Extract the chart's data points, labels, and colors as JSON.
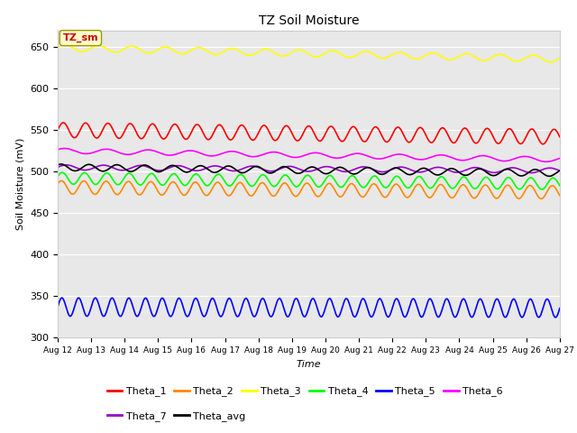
{
  "title": "TZ Soil Moisture",
  "xlabel": "Time",
  "ylabel": "Soil Moisture (mV)",
  "ylim": [
    300,
    670
  ],
  "yticks": [
    300,
    350,
    400,
    450,
    500,
    550,
    600,
    650
  ],
  "num_points": 1500,
  "background_color": "#e8e8e8",
  "fig_background": "#ffffff",
  "label_box_text": "TZ_sm",
  "label_box_bg": "#ffffcc",
  "label_box_fg": "#cc0000",
  "series": [
    {
      "name": "Theta_1",
      "color": "#ff0000",
      "base": 550,
      "trend": -0.55,
      "amplitude": 9,
      "frequency": 1.5,
      "phase": 0.0
    },
    {
      "name": "Theta_2",
      "color": "#ff8800",
      "base": 481,
      "trend": -0.4,
      "amplitude": 8,
      "frequency": 1.5,
      "phase": 0.5
    },
    {
      "name": "Theta_3",
      "color": "#ffff00",
      "base": 649,
      "trend": -0.9,
      "amplitude": 4,
      "frequency": 1.0,
      "phase": 0.2
    },
    {
      "name": "Theta_4",
      "color": "#00ff00",
      "base": 492,
      "trend": -0.45,
      "amplitude": 7,
      "frequency": 1.5,
      "phase": 0.3
    },
    {
      "name": "Theta_5",
      "color": "#0000ff",
      "base": 337,
      "trend": -0.1,
      "amplitude": 11,
      "frequency": 2.0,
      "phase": 0.0
    },
    {
      "name": "Theta_6",
      "color": "#ff00ff",
      "base": 525,
      "trend": -0.7,
      "amplitude": 3,
      "frequency": 0.8,
      "phase": 0.5
    },
    {
      "name": "Theta_7",
      "color": "#9900cc",
      "base": 505,
      "trend": -0.25,
      "amplitude": 3,
      "frequency": 0.9,
      "phase": 0.1
    },
    {
      "name": "Theta_avg",
      "color": "#000000",
      "base": 505,
      "trend": -0.45,
      "amplitude": 4,
      "frequency": 1.2,
      "phase": 0.8
    }
  ],
  "xtick_labels": [
    "Aug 12",
    "Aug 13",
    "Aug 14",
    "Aug 15",
    "Aug 16",
    "Aug 17",
    "Aug 18",
    "Aug 19",
    "Aug 20",
    "Aug 21",
    "Aug 22",
    "Aug 23",
    "Aug 24",
    "Aug 25",
    "Aug 26",
    "Aug 27"
  ]
}
